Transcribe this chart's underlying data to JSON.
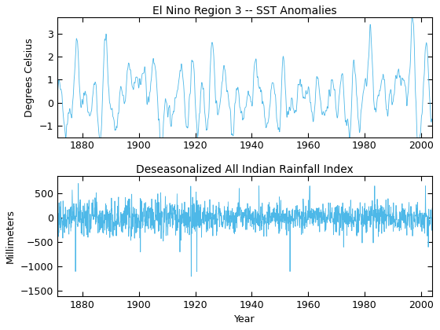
{
  "title1": "El Nino Region 3 -- SST Anomalies",
  "ylabel1": "Degrees Celsius",
  "title2": "Deseasonalized All Indian Rainfall Index",
  "xlabel2": "Year",
  "ylabel2": "Millimeters",
  "line_color": "#4db8e8",
  "years_start": 1871,
  "years_end": 2004,
  "xlim": [
    1871,
    2004
  ],
  "ylim1": [
    -1.5,
    3.7
  ],
  "ylim2": [
    -1600,
    850
  ],
  "yticks1": [
    -1,
    0,
    1,
    2,
    3
  ],
  "yticks2": [
    -1500,
    -1000,
    -500,
    0,
    500
  ],
  "xticks": [
    1880,
    1900,
    1920,
    1940,
    1960,
    1980,
    2000
  ],
  "bg_color": "#ffffff",
  "linewidth": 0.6,
  "title_fontsize": 10,
  "label_fontsize": 9,
  "tick_fontsize": 9
}
